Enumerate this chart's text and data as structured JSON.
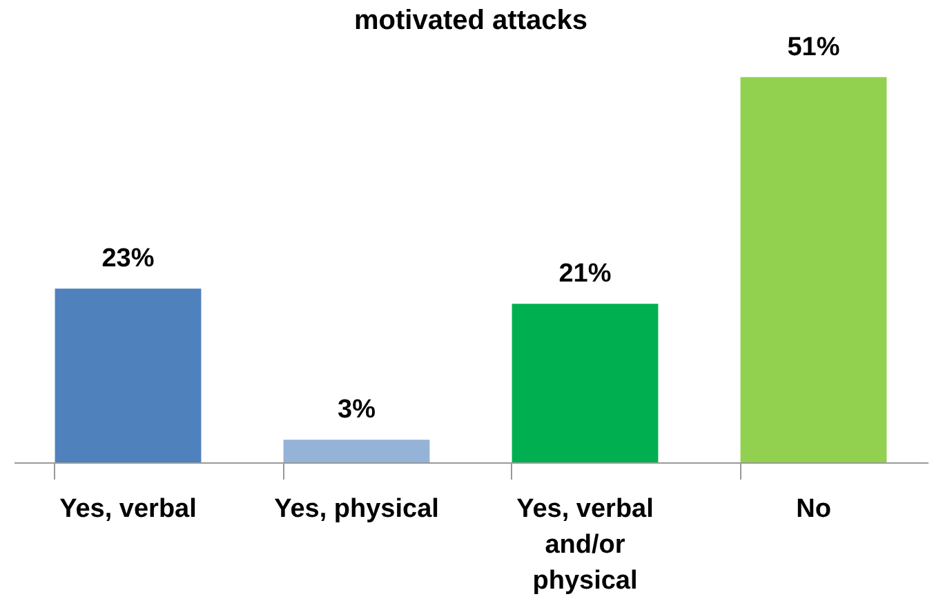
{
  "chart_data": {
    "type": "bar",
    "title": "motivated attacks",
    "categories": [
      "Yes, verbal",
      "Yes, physical",
      "Yes, verbal and/or physical",
      "No"
    ],
    "values": [
      23,
      3,
      21,
      51
    ],
    "colors": [
      "#4f81bd",
      "#95b3d7",
      "#00b050",
      "#92d050"
    ],
    "value_labels": [
      "23%",
      "3%",
      "21%",
      "51%"
    ]
  }
}
